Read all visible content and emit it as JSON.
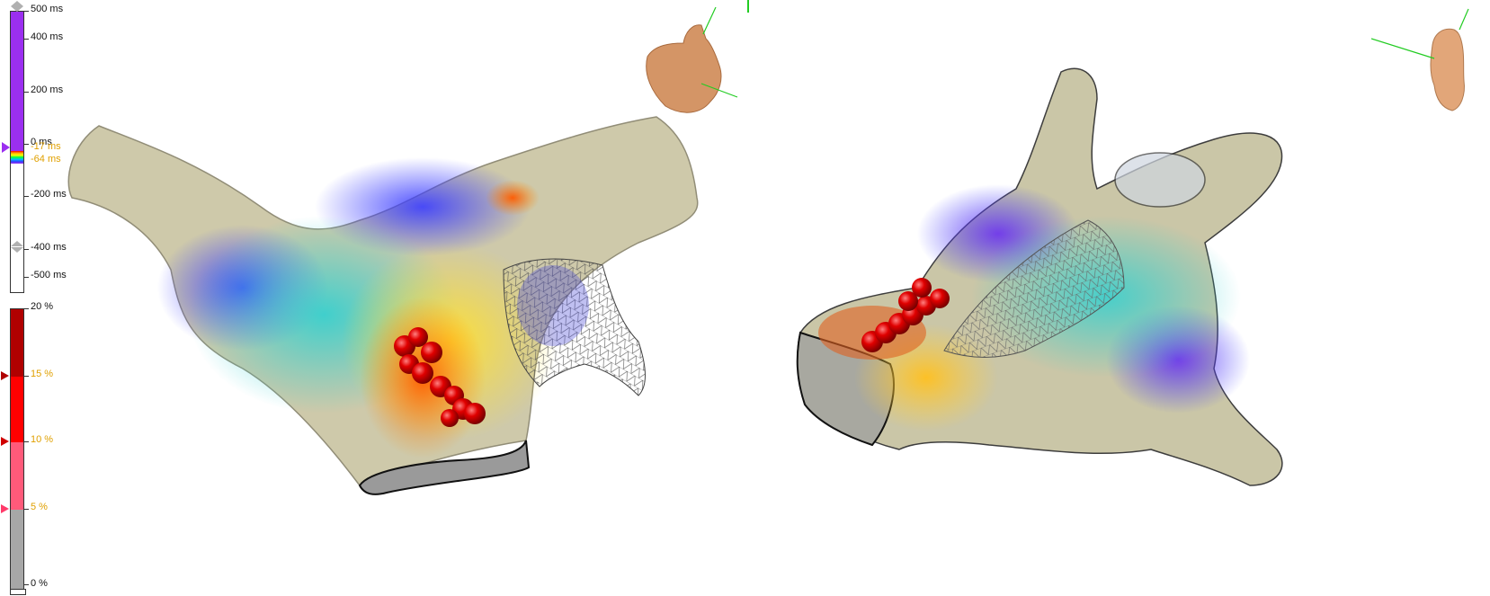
{
  "lat_scale": {
    "labels": [
      "500 ms",
      "400 ms",
      "200 ms",
      "0 ms",
      "-200 ms",
      "-400 ms",
      "-500 ms"
    ],
    "window_labels": [
      "-17 ms",
      "-64 ms"
    ],
    "colors": {
      "fill": "#9b2ff0",
      "window": "#e0a000"
    }
  },
  "bipolar_scale": {
    "labels": [
      "20 %",
      "15 %",
      "10 %",
      "5 %",
      "0 %"
    ],
    "colors": {
      "dark_red": "#b00000",
      "red": "#ff0000",
      "pink": "#ff5a7a",
      "gray": "#a7a7a7"
    }
  },
  "orientation_icons": [
    "torso-icon",
    "torso-icon"
  ],
  "views": [
    "left-anatomy-view",
    "right-anatomy-view"
  ]
}
